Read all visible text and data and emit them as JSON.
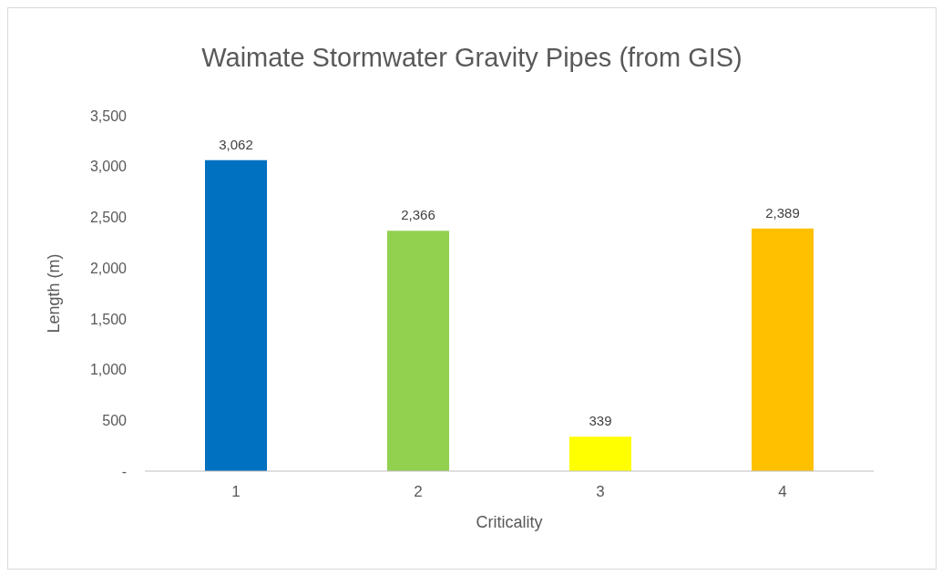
{
  "chart_data": {
    "type": "bar",
    "title": "Waimate Stormwater Gravity Pipes (from GIS)",
    "xlabel": "Criticality",
    "ylabel": "Length (m)",
    "categories": [
      "1",
      "2",
      "3",
      "4"
    ],
    "values": [
      3062,
      2366,
      339,
      2389
    ],
    "colors": [
      "#0070c0",
      "#92d050",
      "#ffff00",
      "#ffc000"
    ],
    "value_labels": [
      "3,062",
      "2,366",
      "339",
      "2,389"
    ],
    "ylim": [
      0,
      3500
    ],
    "yticks": [
      {
        "value": 0,
        "label": "-"
      },
      500,
      {
        "value": 1000,
        "label": "1,000"
      },
      {
        "value": 1500,
        "label": "1,500"
      },
      {
        "value": 2000,
        "label": "2,000"
      },
      {
        "value": 2500,
        "label": "2,500"
      },
      {
        "value": 3000,
        "label": "3,000"
      },
      {
        "value": 3500,
        "label": "3,500"
      }
    ],
    "grid": false,
    "legend": false
  }
}
